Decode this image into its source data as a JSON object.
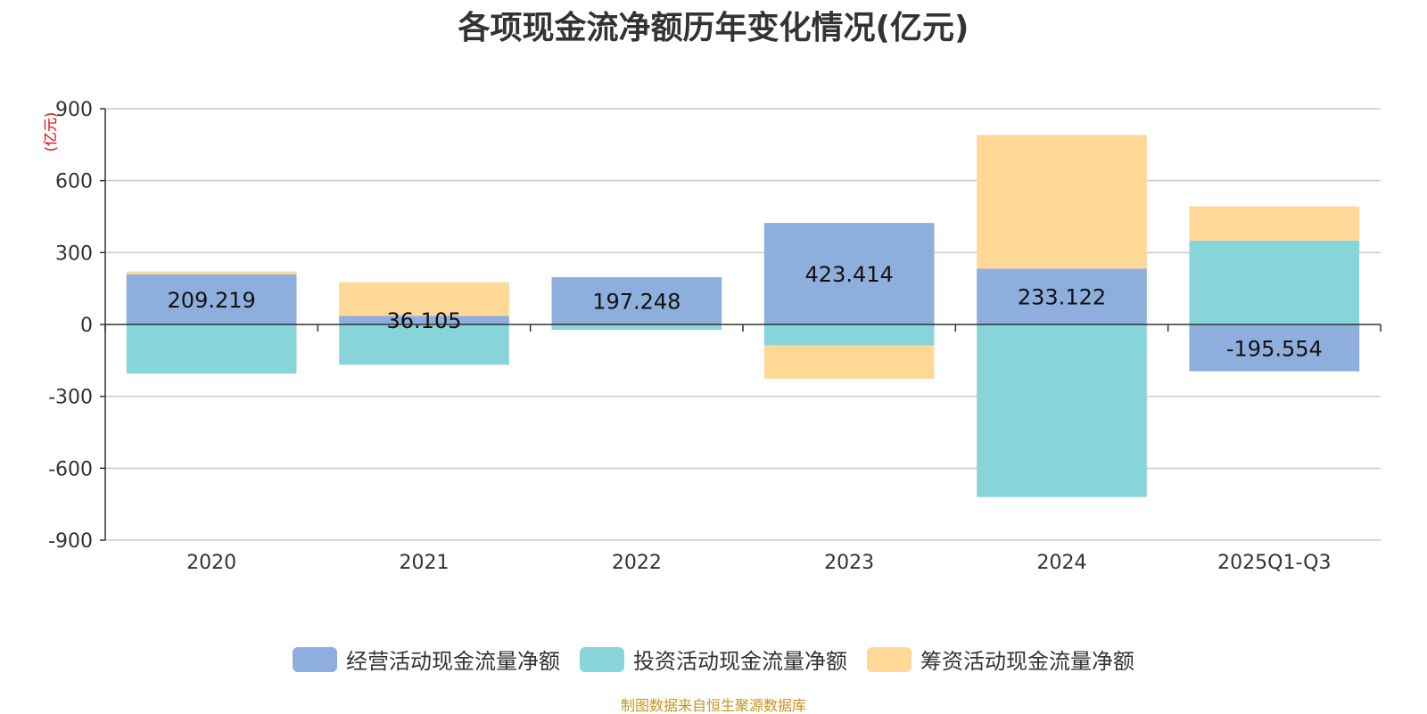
{
  "chart_data": {
    "type": "bar",
    "stacked": true,
    "title": "各项现金流净额历年变化情况(亿元)",
    "ylabel": "(亿元)",
    "xlabel": "",
    "categories": [
      "2020",
      "2021",
      "2022",
      "2023",
      "2024",
      "2025Q1-Q3"
    ],
    "ylim": [
      -900,
      900
    ],
    "yticks": [
      -900,
      -600,
      -300,
      0,
      300,
      600,
      900
    ],
    "grid": true,
    "legend_position": "bottom",
    "series": [
      {
        "name": "经营活动现金流量净额",
        "color": "#8eaedd",
        "show_labels": true,
        "values": [
          209.219,
          36.105,
          197.248,
          423.414,
          233.122,
          -195.554
        ]
      },
      {
        "name": "投资活动现金流量净额",
        "color": "#88d5d9",
        "show_labels": false,
        "values": [
          -205,
          -168,
          -22,
          -88,
          -720,
          350
        ]
      },
      {
        "name": "筹资活动现金流量净额",
        "color": "#ffd898",
        "show_labels": false,
        "values": [
          12,
          140,
          0,
          -138,
          558,
          143
        ]
      }
    ],
    "source_note": "制图数据来自恒生聚源数据库"
  }
}
